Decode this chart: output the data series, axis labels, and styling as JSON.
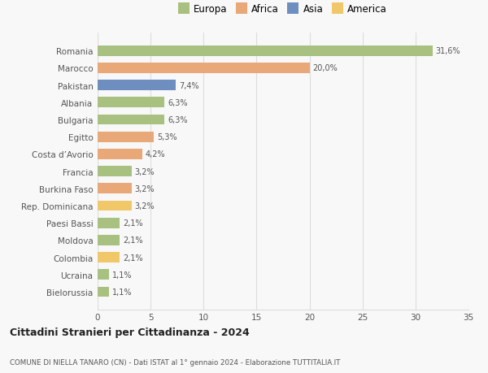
{
  "categories": [
    "Bielorussia",
    "Ucraina",
    "Colombia",
    "Moldova",
    "Paesi Bassi",
    "Rep. Dominicana",
    "Burkina Faso",
    "Francia",
    "Costa d’Avorio",
    "Egitto",
    "Bulgaria",
    "Albania",
    "Pakistan",
    "Marocco",
    "Romania"
  ],
  "values": [
    1.1,
    1.1,
    2.1,
    2.1,
    2.1,
    3.2,
    3.2,
    3.2,
    4.2,
    5.3,
    6.3,
    6.3,
    7.4,
    20.0,
    31.6
  ],
  "labels": [
    "1,1%",
    "1,1%",
    "2,1%",
    "2,1%",
    "2,1%",
    "3,2%",
    "3,2%",
    "3,2%",
    "4,2%",
    "5,3%",
    "6,3%",
    "6,3%",
    "7,4%",
    "20,0%",
    "31,6%"
  ],
  "colors": [
    "#a8c080",
    "#a8c080",
    "#f0c86a",
    "#a8c080",
    "#a8c080",
    "#f0c86a",
    "#e8a878",
    "#a8c080",
    "#e8a878",
    "#e8a878",
    "#a8c080",
    "#a8c080",
    "#6e8ec0",
    "#e8a878",
    "#a8c080"
  ],
  "continent_colors": {
    "Europa": "#a8c080",
    "Africa": "#e8a878",
    "Asia": "#6e8ec0",
    "America": "#f0c86a"
  },
  "legend_labels": [
    "Europa",
    "Africa",
    "Asia",
    "America"
  ],
  "title": "Cittadini Stranieri per Cittadinanza - 2024",
  "subtitle": "COMUNE DI NIELLA TANARO (CN) - Dati ISTAT al 1° gennaio 2024 - Elaborazione TUTTITALIA.IT",
  "xlim": [
    0,
    35
  ],
  "xticks": [
    0,
    5,
    10,
    15,
    20,
    25,
    30,
    35
  ],
  "bg_color": "#f8f8f8",
  "grid_color": "#dddddd",
  "bar_height": 0.6
}
